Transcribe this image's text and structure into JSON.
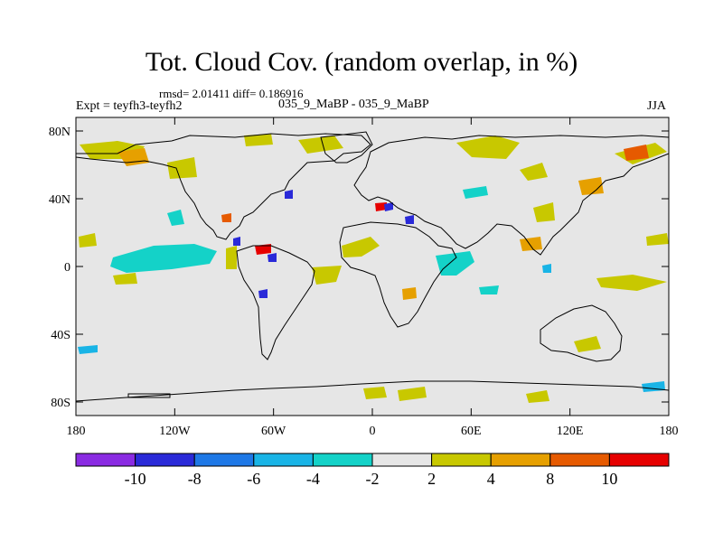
{
  "plot": {
    "title": "Tot. Cloud Cov. (random overlap, in %)",
    "stats": "rmsd= 2.01411 diff= 0.186916",
    "experiment": "Expt = teyfh3-teyfh2",
    "runs": "035_9_MaBP - 035_9_MaBP",
    "season": "JJA",
    "background_color": "#e6e6e6"
  },
  "axes": {
    "lon_labels": [
      "180",
      "120W",
      "60W",
      "0",
      "60E",
      "120E",
      "180"
    ],
    "lon_values": [
      -180,
      -120,
      -60,
      0,
      60,
      120,
      180
    ],
    "lat_labels": [
      "80N",
      "40N",
      "0",
      "40S",
      "80S"
    ],
    "lat_values": [
      80,
      40,
      0,
      -40,
      -80
    ]
  },
  "colorbar": {
    "labels": [
      "-10",
      "-8",
      "-6",
      "-4",
      "-2",
      "2",
      "4",
      "8",
      "10"
    ],
    "colors": [
      "#8a2be2",
      "#2a2ad8",
      "#1e78e6",
      "#19b4e6",
      "#14d2c8",
      "#e6e6e6",
      "#c8c800",
      "#e6a000",
      "#e65a00",
      "#e60000"
    ]
  }
}
